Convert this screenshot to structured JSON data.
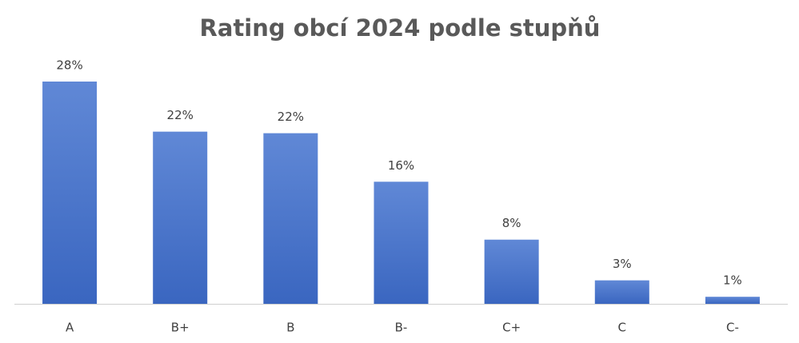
{
  "chart_data": {
    "type": "bar",
    "title": "Rating obcí 2024 podle stupňů",
    "categories": [
      "A",
      "B+",
      "B",
      "B-",
      "C+",
      "C",
      "C-"
    ],
    "values": [
      28.4,
      22.0,
      21.8,
      15.6,
      8.2,
      3.0,
      0.9
    ],
    "value_labels": [
      "28%",
      "22%",
      "22%",
      "16%",
      "8%",
      "3%",
      "1%"
    ],
    "color": "#4472c4"
  }
}
